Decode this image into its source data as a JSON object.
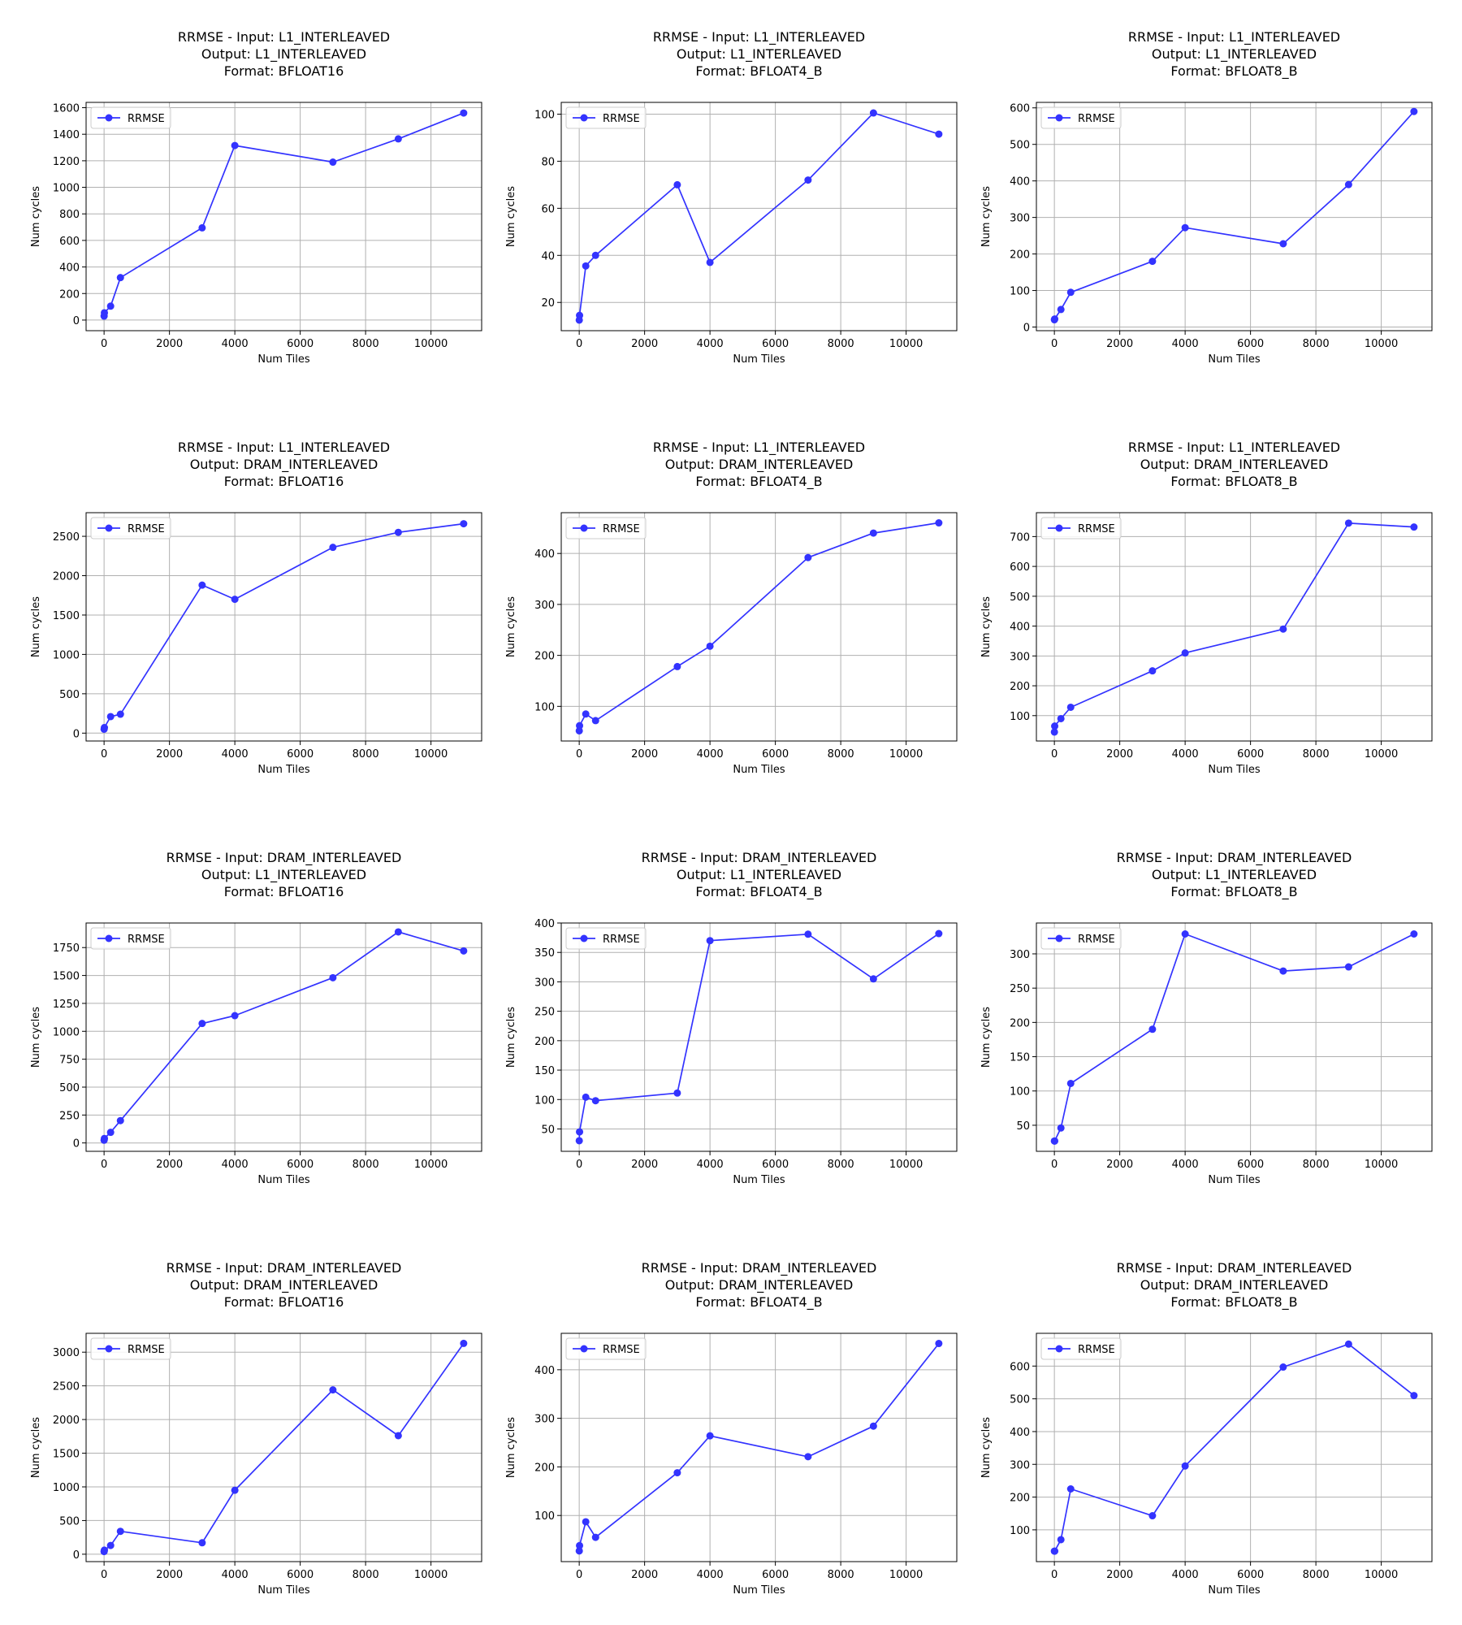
{
  "figure": {
    "xlabel": "Num Tiles",
    "ylabel": "Num cycles",
    "legend_label": "RRMSE",
    "legend_placement": "upper-left",
    "grid": true,
    "line_color": "#3333ff",
    "marker": "circle"
  },
  "chart_data": [
    {
      "type": "line",
      "title": [
        "RRMSE - Input: L1_INTERLEAVED",
        "Output: L1_INTERLEAVED",
        "Format: BFLOAT16"
      ],
      "xlabel": "Num Tiles",
      "ylabel": "Num cycles",
      "xlim": [
        -550,
        11550
      ],
      "ylim": [
        -80,
        1640
      ],
      "xticks": [
        0,
        2000,
        4000,
        6000,
        8000,
        10000
      ],
      "yticks": [
        0,
        200,
        400,
        600,
        800,
        1000,
        1200,
        1400,
        1600
      ],
      "series": [
        {
          "name": "RRMSE",
          "x": [
            1,
            10,
            200,
            500,
            3000,
            4000,
            7000,
            9000,
            11000
          ],
          "y": [
            30,
            55,
            105,
            320,
            695,
            1315,
            1190,
            1365,
            1560
          ]
        }
      ]
    },
    {
      "type": "line",
      "title": [
        "RRMSE - Input: L1_INTERLEAVED",
        "Output: L1_INTERLEAVED",
        "Format: BFLOAT4_B"
      ],
      "xlabel": "Num Tiles",
      "ylabel": "Num cycles",
      "xlim": [
        -550,
        11550
      ],
      "ylim": [
        8,
        105
      ],
      "xticks": [
        0,
        2000,
        4000,
        6000,
        8000,
        10000
      ],
      "yticks": [
        20,
        40,
        60,
        80,
        100
      ],
      "series": [
        {
          "name": "RRMSE",
          "x": [
            1,
            10,
            200,
            500,
            3000,
            4000,
            7000,
            9000,
            11000
          ],
          "y": [
            12.5,
            14.5,
            35.5,
            40,
            70,
            37,
            72,
            100.5,
            91.5
          ]
        }
      ]
    },
    {
      "type": "line",
      "title": [
        "RRMSE - Input: L1_INTERLEAVED",
        "Output: L1_INTERLEAVED",
        "Format: BFLOAT8_B"
      ],
      "xlabel": "Num Tiles",
      "ylabel": "Num cycles",
      "xlim": [
        -550,
        11550
      ],
      "ylim": [
        -10,
        615
      ],
      "xticks": [
        0,
        2000,
        4000,
        6000,
        8000,
        10000
      ],
      "yticks": [
        0,
        100,
        200,
        300,
        400,
        500,
        600
      ],
      "series": [
        {
          "name": "RRMSE",
          "x": [
            1,
            10,
            200,
            500,
            3000,
            4000,
            7000,
            9000,
            11000
          ],
          "y": [
            20,
            22,
            48,
            95,
            180,
            272,
            228,
            390,
            590
          ]
        }
      ]
    },
    {
      "type": "line",
      "title": [
        "RRMSE - Input: L1_INTERLEAVED",
        "Output: DRAM_INTERLEAVED",
        "Format: BFLOAT16"
      ],
      "xlabel": "Num Tiles",
      "ylabel": "Num cycles",
      "xlim": [
        -550,
        11550
      ],
      "ylim": [
        -100,
        2800
      ],
      "xticks": [
        0,
        2000,
        4000,
        6000,
        8000,
        10000
      ],
      "yticks": [
        0,
        500,
        1000,
        1500,
        2000,
        2500
      ],
      "series": [
        {
          "name": "RRMSE",
          "x": [
            1,
            10,
            200,
            500,
            3000,
            4000,
            7000,
            9000,
            11000
          ],
          "y": [
            50,
            70,
            210,
            240,
            1880,
            1700,
            2360,
            2550,
            2660
          ]
        }
      ]
    },
    {
      "type": "line",
      "title": [
        "RRMSE - Input: L1_INTERLEAVED",
        "Output: DRAM_INTERLEAVED",
        "Format: BFLOAT4_B"
      ],
      "xlabel": "Num Tiles",
      "ylabel": "Num cycles",
      "xlim": [
        -550,
        11550
      ],
      "ylim": [
        32,
        480
      ],
      "xticks": [
        0,
        2000,
        4000,
        6000,
        8000,
        10000
      ],
      "yticks": [
        100,
        200,
        300,
        400
      ],
      "series": [
        {
          "name": "RRMSE",
          "x": [
            1,
            10,
            200,
            500,
            3000,
            4000,
            7000,
            9000,
            11000
          ],
          "y": [
            52,
            62,
            85,
            72,
            178,
            218,
            392,
            440,
            460
          ]
        }
      ]
    },
    {
      "type": "line",
      "title": [
        "RRMSE - Input: L1_INTERLEAVED",
        "Output: DRAM_INTERLEAVED",
        "Format: BFLOAT8_B"
      ],
      "xlabel": "Num Tiles",
      "ylabel": "Num cycles",
      "xlim": [
        -550,
        11550
      ],
      "ylim": [
        15,
        780
      ],
      "xticks": [
        0,
        2000,
        4000,
        6000,
        8000,
        10000
      ],
      "yticks": [
        100,
        200,
        300,
        400,
        500,
        600,
        700
      ],
      "series": [
        {
          "name": "RRMSE",
          "x": [
            1,
            10,
            200,
            500,
            3000,
            4000,
            7000,
            9000,
            11000
          ],
          "y": [
            45,
            65,
            90,
            128,
            250,
            310,
            390,
            745,
            732
          ]
        }
      ]
    },
    {
      "type": "line",
      "title": [
        "RRMSE - Input: DRAM_INTERLEAVED",
        "Output: L1_INTERLEAVED",
        "Format: BFLOAT16"
      ],
      "xlabel": "Num Tiles",
      "ylabel": "Num cycles",
      "xlim": [
        -550,
        11550
      ],
      "ylim": [
        -75,
        1970
      ],
      "xticks": [
        0,
        2000,
        4000,
        6000,
        8000,
        10000
      ],
      "yticks": [
        0,
        250,
        500,
        750,
        1000,
        1250,
        1500,
        1750
      ],
      "series": [
        {
          "name": "RRMSE",
          "x": [
            1,
            10,
            200,
            500,
            3000,
            4000,
            7000,
            9000,
            11000
          ],
          "y": [
            25,
            40,
            95,
            200,
            1070,
            1140,
            1480,
            1890,
            1720
          ]
        }
      ]
    },
    {
      "type": "line",
      "title": [
        "RRMSE - Input: DRAM_INTERLEAVED",
        "Output: L1_INTERLEAVED",
        "Format: BFLOAT4_B"
      ],
      "xlabel": "Num Tiles",
      "ylabel": "Num cycles",
      "xlim": [
        -550,
        11550
      ],
      "ylim": [
        12,
        400
      ],
      "xticks": [
        0,
        2000,
        4000,
        6000,
        8000,
        10000
      ],
      "yticks": [
        50,
        100,
        150,
        200,
        250,
        300,
        350,
        400
      ],
      "series": [
        {
          "name": "RRMSE",
          "x": [
            1,
            10,
            200,
            500,
            3000,
            4000,
            7000,
            9000,
            11000
          ],
          "y": [
            30,
            45,
            104,
            98,
            111,
            370,
            381,
            305,
            382
          ]
        }
      ]
    },
    {
      "type": "line",
      "title": [
        "RRMSE - Input: DRAM_INTERLEAVED",
        "Output: L1_INTERLEAVED",
        "Format: BFLOAT8_B"
      ],
      "xlabel": "Num Tiles",
      "ylabel": "Num cycles",
      "xlim": [
        -550,
        11550
      ],
      "ylim": [
        12,
        345
      ],
      "xticks": [
        0,
        2000,
        4000,
        6000,
        8000,
        10000
      ],
      "yticks": [
        50,
        100,
        150,
        200,
        250,
        300
      ],
      "series": [
        {
          "name": "RRMSE",
          "x": [
            1,
            10,
            200,
            500,
            3000,
            4000,
            7000,
            9000,
            11000
          ],
          "y": [
            27,
            27,
            46,
            111,
            190,
            329,
            275,
            281,
            329
          ]
        }
      ]
    },
    {
      "type": "line",
      "title": [
        "RRMSE - Input: DRAM_INTERLEAVED",
        "Output: DRAM_INTERLEAVED",
        "Format: BFLOAT16"
      ],
      "xlabel": "Num Tiles",
      "ylabel": "Num cycles",
      "xlim": [
        -550,
        11550
      ],
      "ylim": [
        -110,
        3280
      ],
      "xticks": [
        0,
        2000,
        4000,
        6000,
        8000,
        10000
      ],
      "yticks": [
        0,
        500,
        1000,
        1500,
        2000,
        2500,
        3000
      ],
      "series": [
        {
          "name": "RRMSE",
          "x": [
            1,
            10,
            200,
            500,
            3000,
            4000,
            7000,
            9000,
            11000
          ],
          "y": [
            40,
            60,
            130,
            340,
            170,
            950,
            2440,
            1760,
            3130
          ]
        }
      ]
    },
    {
      "type": "line",
      "title": [
        "RRMSE - Input: DRAM_INTERLEAVED",
        "Output: DRAM_INTERLEAVED",
        "Format: BFLOAT4_B"
      ],
      "xlabel": "Num Tiles",
      "ylabel": "Num cycles",
      "xlim": [
        -550,
        11550
      ],
      "ylim": [
        5,
        475
      ],
      "xticks": [
        0,
        2000,
        4000,
        6000,
        8000,
        10000
      ],
      "yticks": [
        100,
        200,
        300,
        400
      ],
      "series": [
        {
          "name": "RRMSE",
          "x": [
            1,
            10,
            200,
            500,
            3000,
            4000,
            7000,
            9000,
            11000
          ],
          "y": [
            27,
            38,
            87,
            55,
            188,
            264,
            221,
            284,
            454
          ]
        }
      ]
    },
    {
      "type": "line",
      "title": [
        "RRMSE - Input: DRAM_INTERLEAVED",
        "Output: DRAM_INTERLEAVED",
        "Format: BFLOAT8_B"
      ],
      "xlabel": "Num Tiles",
      "ylabel": "Num cycles",
      "xlim": [
        -550,
        11550
      ],
      "ylim": [
        3,
        700
      ],
      "xticks": [
        0,
        2000,
        4000,
        6000,
        8000,
        10000
      ],
      "yticks": [
        100,
        200,
        300,
        400,
        500,
        600
      ],
      "series": [
        {
          "name": "RRMSE",
          "x": [
            1,
            10,
            200,
            500,
            3000,
            4000,
            7000,
            9000,
            11000
          ],
          "y": [
            35,
            35,
            70,
            225,
            143,
            295,
            597,
            667,
            510
          ]
        }
      ]
    }
  ]
}
